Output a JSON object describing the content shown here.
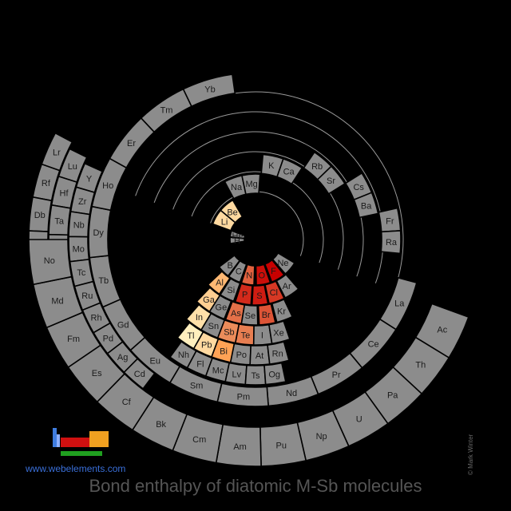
{
  "title": "Bond enthalpy of diatomic M-Sb molecules",
  "site": "www.webelements.com",
  "credit": "© Mark Winter",
  "colors": {
    "background": "#000000",
    "no_data": "#8c8c8c",
    "text": "#1a1a1a",
    "logo_blue": "#3f7de0",
    "logo_red": "#d01010",
    "logo_orange": "#f0a020",
    "logo_green": "#20a020"
  },
  "chart_data": {
    "type": "heatmap",
    "layout": "spiral periodic table",
    "scale": "white-yellow-red (higher = redder)",
    "elements": [
      {
        "symbol": "H",
        "level": null
      },
      {
        "symbol": "He",
        "level": null
      },
      {
        "symbol": "Li",
        "level": 0.15
      },
      {
        "symbol": "Be",
        "level": 0.15
      },
      {
        "symbol": "B",
        "level": null
      },
      {
        "symbol": "C",
        "level": null
      },
      {
        "symbol": "N",
        "level": 0.65
      },
      {
        "symbol": "O",
        "level": 0.95
      },
      {
        "symbol": "F",
        "level": 1.0
      },
      {
        "symbol": "Ne",
        "level": null
      },
      {
        "symbol": "Na",
        "level": null
      },
      {
        "symbol": "Mg",
        "level": null
      },
      {
        "symbol": "Al",
        "level": 0.3
      },
      {
        "symbol": "Si",
        "level": null
      },
      {
        "symbol": "P",
        "level": 0.85
      },
      {
        "symbol": "S",
        "level": 0.9
      },
      {
        "symbol": "Cl",
        "level": 0.8
      },
      {
        "symbol": "Ar",
        "level": null
      },
      {
        "symbol": "K",
        "level": null
      },
      {
        "symbol": "Ca",
        "level": null
      },
      {
        "symbol": "Sc",
        "level": null
      },
      {
        "symbol": "Ti",
        "level": null
      },
      {
        "symbol": "V",
        "level": null
      },
      {
        "symbol": "Cr",
        "level": null
      },
      {
        "symbol": "Mn",
        "level": null
      },
      {
        "symbol": "Fe",
        "level": null
      },
      {
        "symbol": "Co",
        "level": null
      },
      {
        "symbol": "Ni",
        "level": null
      },
      {
        "symbol": "Cu",
        "level": null
      },
      {
        "symbol": "Zn",
        "level": null
      },
      {
        "symbol": "Ga",
        "level": 0.2
      },
      {
        "symbol": "Ge",
        "level": null
      },
      {
        "symbol": "As",
        "level": 0.6
      },
      {
        "symbol": "Se",
        "level": null
      },
      {
        "symbol": "Br",
        "level": 0.7
      },
      {
        "symbol": "Kr",
        "level": null
      },
      {
        "symbol": "Rb",
        "level": null
      },
      {
        "symbol": "Sr",
        "level": null
      },
      {
        "symbol": "Y",
        "level": null
      },
      {
        "symbol": "Zr",
        "level": null
      },
      {
        "symbol": "Nb",
        "level": null
      },
      {
        "symbol": "Mo",
        "level": null
      },
      {
        "symbol": "Tc",
        "level": null
      },
      {
        "symbol": "Ru",
        "level": null
      },
      {
        "symbol": "Rh",
        "level": null
      },
      {
        "symbol": "Pd",
        "level": null
      },
      {
        "symbol": "Ag",
        "level": null
      },
      {
        "symbol": "Cd",
        "level": null
      },
      {
        "symbol": "In",
        "level": 0.12
      },
      {
        "symbol": "Sn",
        "level": null
      },
      {
        "symbol": "Sb",
        "level": 0.5
      },
      {
        "symbol": "Te",
        "level": 0.55
      },
      {
        "symbol": "I",
        "level": null
      },
      {
        "symbol": "Xe",
        "level": null
      },
      {
        "symbol": "Cs",
        "level": null
      },
      {
        "symbol": "Ba",
        "level": null
      },
      {
        "symbol": "La",
        "level": null
      },
      {
        "symbol": "Ce",
        "level": null
      },
      {
        "symbol": "Pr",
        "level": null
      },
      {
        "symbol": "Nd",
        "level": null
      },
      {
        "symbol": "Pm",
        "level": null
      },
      {
        "symbol": "Sm",
        "level": null
      },
      {
        "symbol": "Eu",
        "level": null
      },
      {
        "symbol": "Gd",
        "level": null
      },
      {
        "symbol": "Tb",
        "level": null
      },
      {
        "symbol": "Dy",
        "level": null
      },
      {
        "symbol": "Ho",
        "level": null
      },
      {
        "symbol": "Er",
        "level": null
      },
      {
        "symbol": "Tm",
        "level": null
      },
      {
        "symbol": "Yb",
        "level": null
      },
      {
        "symbol": "Lu",
        "level": null
      },
      {
        "symbol": "Hf",
        "level": null
      },
      {
        "symbol": "Ta",
        "level": null
      },
      {
        "symbol": "W",
        "level": null
      },
      {
        "symbol": "Re",
        "level": null
      },
      {
        "symbol": "Os",
        "level": null
      },
      {
        "symbol": "Ir",
        "level": null
      },
      {
        "symbol": "Pt",
        "level": null
      },
      {
        "symbol": "Au",
        "level": null
      },
      {
        "symbol": "Hg",
        "level": null
      },
      {
        "symbol": "Tl",
        "level": 0.05
      },
      {
        "symbol": "Pb",
        "level": 0.15
      },
      {
        "symbol": "Bi",
        "level": 0.4
      },
      {
        "symbol": "Po",
        "level": null
      },
      {
        "symbol": "At",
        "level": null
      },
      {
        "symbol": "Rn",
        "level": null
      },
      {
        "symbol": "Fr",
        "level": null
      },
      {
        "symbol": "Ra",
        "level": null
      },
      {
        "symbol": "Ac",
        "level": null
      },
      {
        "symbol": "Th",
        "level": null
      },
      {
        "symbol": "Pa",
        "level": null
      },
      {
        "symbol": "U",
        "level": null
      },
      {
        "symbol": "Np",
        "level": null
      },
      {
        "symbol": "Pu",
        "level": null
      },
      {
        "symbol": "Am",
        "level": null
      },
      {
        "symbol": "Cm",
        "level": null
      },
      {
        "symbol": "Bk",
        "level": null
      },
      {
        "symbol": "Cf",
        "level": null
      },
      {
        "symbol": "Es",
        "level": null
      },
      {
        "symbol": "Fm",
        "level": null
      },
      {
        "symbol": "Md",
        "level": null
      },
      {
        "symbol": "No",
        "level": null
      },
      {
        "symbol": "Lr",
        "level": null
      },
      {
        "symbol": "Rf",
        "level": null
      },
      {
        "symbol": "Db",
        "level": null
      },
      {
        "symbol": "Sg",
        "level": null
      },
      {
        "symbol": "Bh",
        "level": null
      },
      {
        "symbol": "Hs",
        "level": null
      },
      {
        "symbol": "Mt",
        "level": null
      },
      {
        "symbol": "Ds",
        "level": null
      },
      {
        "symbol": "Rg",
        "level": null
      },
      {
        "symbol": "Cn",
        "level": null
      },
      {
        "symbol": "Nh",
        "level": null
      },
      {
        "symbol": "Fl",
        "level": null
      },
      {
        "symbol": "Mc",
        "level": null
      },
      {
        "symbol": "Lv",
        "level": null
      },
      {
        "symbol": "Ts",
        "level": null
      },
      {
        "symbol": "Og",
        "level": null
      }
    ]
  }
}
